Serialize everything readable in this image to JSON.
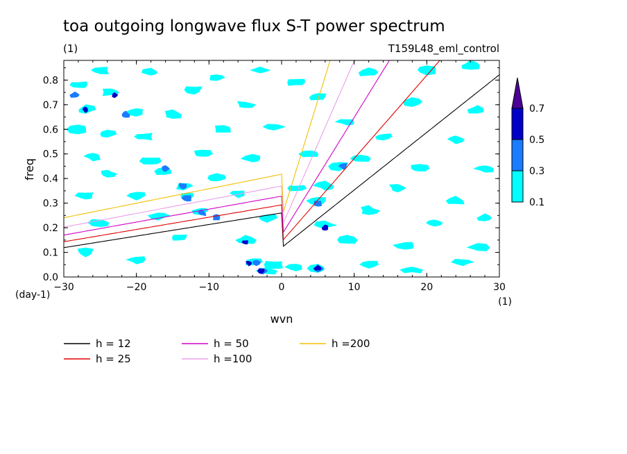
{
  "chart_data": {
    "type": "contour",
    "title": "toa outgoing longwave flux S-T power spectrum",
    "subtitle_left": "(1)",
    "subtitle_right": "T159L48_eml_control",
    "xlabel": "wvn",
    "ylabel": "freq",
    "x_unit": "(1)",
    "y_unit": "(day-1)",
    "xlim": [
      -30,
      30
    ],
    "ylim": [
      0,
      0.88
    ],
    "x_ticks": [
      -30,
      -20,
      -10,
      0,
      10,
      20,
      30
    ],
    "x_tick_labels": [
      "−30",
      "−20",
      "−10",
      "0",
      "10",
      "20",
      "30"
    ],
    "y_ticks": [
      0.0,
      0.1,
      0.2,
      0.3,
      0.4,
      0.5,
      0.6,
      0.7,
      0.8
    ],
    "y_tick_labels": [
      "0.0",
      "0.1",
      "0.2",
      "0.3",
      "0.4",
      "0.5",
      "0.6",
      "0.7",
      "0.8"
    ],
    "colorbar": {
      "levels": [
        0.1,
        0.3,
        0.5,
        0.7
      ],
      "labels": [
        "0.1",
        "0.3",
        "0.5",
        "0.7"
      ],
      "colors": [
        "#00ffff",
        "#1a7cff",
        "#0000c8",
        "#4b0096"
      ]
    },
    "contour_blobs": [
      {
        "x": -28,
        "y": 0.78,
        "level": 0
      },
      {
        "x": -28.5,
        "y": 0.74,
        "level": 1
      },
      {
        "x": -27,
        "y": 0.68,
        "level": 0
      },
      {
        "x": -27,
        "y": 0.68,
        "level": 2
      },
      {
        "x": -25,
        "y": 0.84,
        "level": 0
      },
      {
        "x": -23.5,
        "y": 0.75,
        "level": 0
      },
      {
        "x": -23,
        "y": 0.74,
        "level": 2
      },
      {
        "x": -20,
        "y": 0.67,
        "level": 0
      },
      {
        "x": -21.5,
        "y": 0.66,
        "level": 1
      },
      {
        "x": -28,
        "y": 0.6,
        "level": 0
      },
      {
        "x": -24,
        "y": 0.58,
        "level": 0
      },
      {
        "x": -19,
        "y": 0.57,
        "level": 0
      },
      {
        "x": -15,
        "y": 0.66,
        "level": 0
      },
      {
        "x": -12,
        "y": 0.76,
        "level": 0
      },
      {
        "x": -18,
        "y": 0.83,
        "level": 0
      },
      {
        "x": -9,
        "y": 0.81,
        "level": 0
      },
      {
        "x": -3,
        "y": 0.84,
        "level": 0
      },
      {
        "x": 2,
        "y": 0.79,
        "level": 0
      },
      {
        "x": -5,
        "y": 0.7,
        "level": 0
      },
      {
        "x": 5,
        "y": 0.73,
        "level": 0
      },
      {
        "x": 12,
        "y": 0.83,
        "level": 0
      },
      {
        "x": 20,
        "y": 0.84,
        "level": 0
      },
      {
        "x": 26,
        "y": 0.86,
        "level": 0
      },
      {
        "x": 18,
        "y": 0.71,
        "level": 0
      },
      {
        "x": 27,
        "y": 0.68,
        "level": 0
      },
      {
        "x": 9,
        "y": 0.63,
        "level": 0
      },
      {
        "x": -8,
        "y": 0.6,
        "level": 0
      },
      {
        "x": -1,
        "y": 0.61,
        "level": 0
      },
      {
        "x": 14,
        "y": 0.57,
        "level": 0
      },
      {
        "x": 24,
        "y": 0.56,
        "level": 0
      },
      {
        "x": -26,
        "y": 0.49,
        "level": 0
      },
      {
        "x": -18,
        "y": 0.47,
        "level": 0
      },
      {
        "x": -11,
        "y": 0.5,
        "level": 0
      },
      {
        "x": -4,
        "y": 0.48,
        "level": 0
      },
      {
        "x": 4,
        "y": 0.5,
        "level": 0
      },
      {
        "x": 11,
        "y": 0.48,
        "level": 0
      },
      {
        "x": 19,
        "y": 0.44,
        "level": 0
      },
      {
        "x": 28,
        "y": 0.44,
        "level": 0
      },
      {
        "x": -16,
        "y": 0.43,
        "level": 0
      },
      {
        "x": -16,
        "y": 0.44,
        "level": 1
      },
      {
        "x": -24,
        "y": 0.42,
        "level": 0
      },
      {
        "x": -9,
        "y": 0.4,
        "level": 0
      },
      {
        "x": 8,
        "y": 0.45,
        "level": 0
      },
      {
        "x": 8.5,
        "y": 0.45,
        "level": 1
      },
      {
        "x": -13.5,
        "y": 0.37,
        "level": 0
      },
      {
        "x": -13.5,
        "y": 0.37,
        "level": 1
      },
      {
        "x": -13,
        "y": 0.33,
        "level": 0
      },
      {
        "x": -13,
        "y": 0.32,
        "level": 1
      },
      {
        "x": -20,
        "y": 0.33,
        "level": 0
      },
      {
        "x": -27,
        "y": 0.33,
        "level": 0
      },
      {
        "x": -6,
        "y": 0.34,
        "level": 0
      },
      {
        "x": 2,
        "y": 0.36,
        "level": 0
      },
      {
        "x": 6,
        "y": 0.37,
        "level": 0
      },
      {
        "x": 5,
        "y": 0.31,
        "level": 0
      },
      {
        "x": 5,
        "y": 0.3,
        "level": 1
      },
      {
        "x": 16,
        "y": 0.36,
        "level": 0
      },
      {
        "x": 24,
        "y": 0.31,
        "level": 0
      },
      {
        "x": -11,
        "y": 0.27,
        "level": 0
      },
      {
        "x": -11,
        "y": 0.26,
        "level": 1
      },
      {
        "x": -9,
        "y": 0.24,
        "level": 1
      },
      {
        "x": -17,
        "y": 0.25,
        "level": 0
      },
      {
        "x": -25,
        "y": 0.22,
        "level": 0
      },
      {
        "x": -2,
        "y": 0.24,
        "level": 0
      },
      {
        "x": 6,
        "y": 0.21,
        "level": 0
      },
      {
        "x": 6,
        "y": 0.2,
        "level": 2
      },
      {
        "x": 12,
        "y": 0.27,
        "level": 0
      },
      {
        "x": 21,
        "y": 0.22,
        "level": 0
      },
      {
        "x": 28,
        "y": 0.24,
        "level": 0
      },
      {
        "x": -14,
        "y": 0.16,
        "level": 0
      },
      {
        "x": -5,
        "y": 0.15,
        "level": 0
      },
      {
        "x": -5,
        "y": 0.14,
        "level": 2
      },
      {
        "x": 9,
        "y": 0.15,
        "level": 0
      },
      {
        "x": 17,
        "y": 0.13,
        "level": 0
      },
      {
        "x": 27,
        "y": 0.12,
        "level": 0
      },
      {
        "x": -27,
        "y": 0.1,
        "level": 0
      },
      {
        "x": -20,
        "y": 0.07,
        "level": 0
      },
      {
        "x": -4,
        "y": 0.06,
        "level": 0
      },
      {
        "x": -3.5,
        "y": 0.06,
        "level": 1
      },
      {
        "x": -4.5,
        "y": 0.055,
        "level": 2
      },
      {
        "x": -2,
        "y": 0.025,
        "level": 0
      },
      {
        "x": -2.5,
        "y": 0.025,
        "level": 1
      },
      {
        "x": -2.8,
        "y": 0.025,
        "level": 2
      },
      {
        "x": -1,
        "y": 0.05,
        "level": 0
      },
      {
        "x": 2,
        "y": 0.04,
        "level": 0
      },
      {
        "x": 5,
        "y": 0.035,
        "level": 0
      },
      {
        "x": 5,
        "y": 0.035,
        "level": 1
      },
      {
        "x": 5,
        "y": 0.035,
        "level": 2
      },
      {
        "x": 12,
        "y": 0.05,
        "level": 0
      },
      {
        "x": 18,
        "y": 0.03,
        "level": 0
      },
      {
        "x": 25,
        "y": 0.06,
        "level": 0
      }
    ],
    "series": [
      {
        "name": "h = 12",
        "h": 12,
        "color": "#000000"
      },
      {
        "name": "h = 25",
        "h": 25,
        "color": "#e00000"
      },
      {
        "name": "h = 50",
        "h": 50,
        "color": "#d000c8"
      },
      {
        "name": "h =100",
        "h": 100,
        "color": "#e8a0e8"
      },
      {
        "name": "h =200",
        "h": 200,
        "color": "#f0c000"
      }
    ]
  }
}
